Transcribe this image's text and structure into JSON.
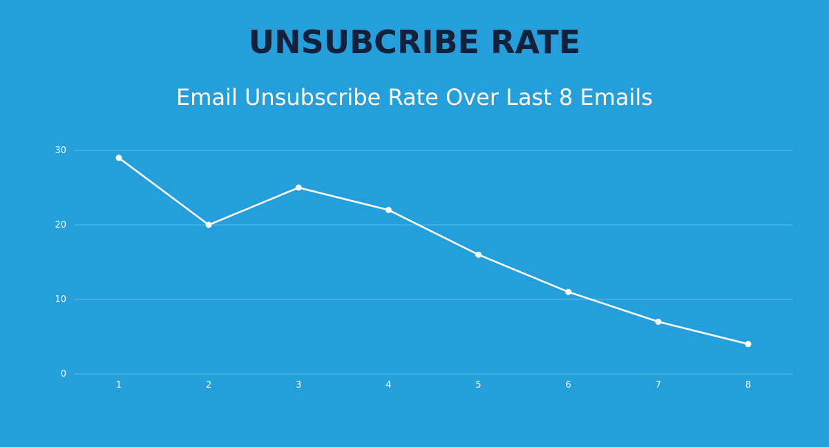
{
  "title": "UNSUBCRIBE RATE",
  "subtitle": "Email Unsubscribe Rate Over Last 8 Emails",
  "colors": {
    "background": "#249fdb",
    "title": "#14213a",
    "line": "#ffffff",
    "grid": "#5cbdea"
  },
  "chart_data": {
    "type": "line",
    "x": [
      1,
      2,
      3,
      4,
      5,
      6,
      7,
      8
    ],
    "categories": [
      "1",
      "2",
      "3",
      "4",
      "5",
      "6",
      "7",
      "8"
    ],
    "series": [
      {
        "values": [
          29,
          20,
          25,
          22,
          16,
          11,
          7,
          4
        ]
      }
    ],
    "ylim": [
      0,
      30
    ],
    "yticks": [
      "0",
      "10",
      "20",
      "30"
    ],
    "grid": true,
    "legend": "none",
    "title": "UNSUBCRIBE RATE",
    "subtitle": "Email Unsubscribe Rate Over Last 8 Emails",
    "xlabel": "",
    "ylabel": ""
  }
}
